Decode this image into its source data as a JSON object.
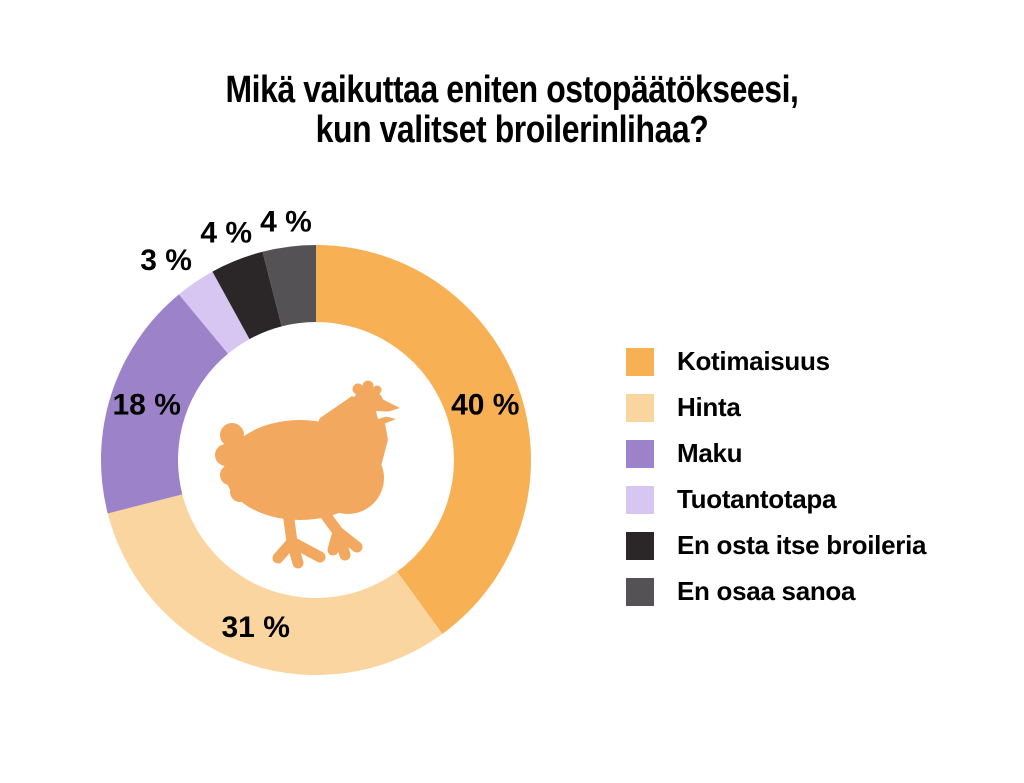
{
  "title": {
    "line1": "Mikä vaikuttaa eniten ostopäätökseesi,",
    "line2": "kun valitset broilerinlihaa?"
  },
  "chart_data": {
    "type": "pie",
    "variant": "donut",
    "title": "Mikä vaikuttaa eniten ostopäätökseesi, kun valitset broilerinlihaa?",
    "unit": "%",
    "direction": "clockwise",
    "start_angle_deg": 0,
    "legend_position": "right",
    "grid": false,
    "center_icon": "chicken-silhouette",
    "center_icon_color": "#F2A95F",
    "label_color": "#000000",
    "geometry": {
      "outer_radius": 215,
      "inner_radius": 138,
      "inside_label_radius": 178,
      "outside_label_radius": 248
    },
    "slices": [
      {
        "label": "Kotimaisuus",
        "value": 40,
        "display": "40 %",
        "color": "#F8B055",
        "label_placement": "inside"
      },
      {
        "label": "Hinta",
        "value": 31,
        "display": "31 %",
        "color": "#FBD5A0",
        "label_placement": "inside"
      },
      {
        "label": "Maku",
        "value": 18,
        "display": "18 %",
        "color": "#9C83C9",
        "label_placement": "inside"
      },
      {
        "label": "Tuotantotapa",
        "value": 3,
        "display": "3 %",
        "color": "#D7C6F1",
        "label_placement": "outside",
        "label_radius": 256,
        "label_dx": -6,
        "label_dy": 12
      },
      {
        "label": "En osta itse broileria",
        "value": 4,
        "display": "4 %",
        "color": "#2B2628",
        "label_placement": "outside",
        "label_radius": 244
      },
      {
        "label": "En osaa sanoa",
        "value": 4,
        "display": "4 %",
        "color": "#545254",
        "label_placement": "outside",
        "label_radius": 240
      }
    ]
  }
}
